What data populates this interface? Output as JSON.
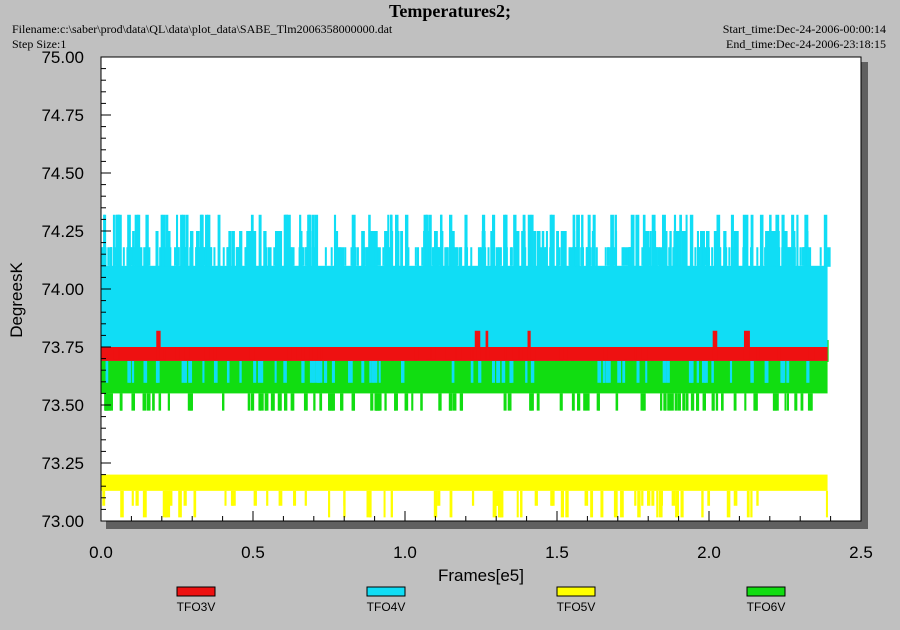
{
  "header": {
    "title": "Temperatures2;",
    "filename": "Filename:c:\\saber\\prod\\data\\QL\\data\\plot_data\\SABE_Tlm2006358000000.dat",
    "step_size": "Step Size:1",
    "start_time": "Start_time:Dec-24-2006-00:00:14",
    "end_time": "End_time:Dec-24-2006-23:18:15"
  },
  "chart_data": {
    "type": "line",
    "title": "Temperatures2;",
    "xlabel": "Frames[e5]",
    "ylabel": "DegreesK",
    "xlim": [
      0.0,
      2.5
    ],
    "ylim": [
      73.0,
      75.0
    ],
    "x_ticks": [
      "0.0",
      "0.5",
      "1.0",
      "1.5",
      "2.0",
      "2.5"
    ],
    "y_ticks": [
      "73.00",
      "73.25",
      "73.50",
      "73.75",
      "74.00",
      "74.25",
      "74.50",
      "74.75",
      "75.00"
    ],
    "grid": false,
    "legend_position": "bottom",
    "series": [
      {
        "name": "TFO3V",
        "color": "#ee1111",
        "x_range": [
          0.0,
          2.39
        ],
        "y_range": [
          73.69,
          73.75
        ],
        "spikes": [
          73.82
        ]
      },
      {
        "name": "TFO4V",
        "color": "#10ddf5",
        "x_range": [
          0.0,
          2.39
        ],
        "y_range": [
          73.69,
          74.1
        ],
        "spikes": [
          74.18,
          74.25,
          74.32,
          73.6
        ]
      },
      {
        "name": "TFO5V",
        "color": "#ffff00",
        "x_range": [
          0.0,
          2.39
        ],
        "y_range": [
          73.13,
          73.2
        ],
        "spikes": [
          73.07,
          73.02
        ]
      },
      {
        "name": "TFO6V",
        "color": "#11dd11",
        "x_range": [
          0.0,
          2.39
        ],
        "y_range": [
          73.55,
          73.69
        ],
        "spikes": [
          73.48,
          73.78
        ]
      }
    ]
  }
}
